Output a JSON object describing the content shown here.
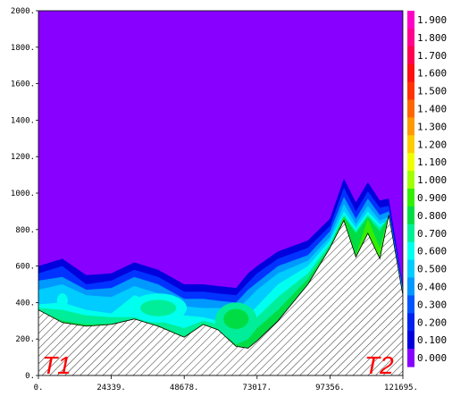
{
  "chart_data": {
    "type": "heatmap",
    "title": "",
    "xlabel": "",
    "ylabel": "",
    "xlim": [
      0,
      121695
    ],
    "ylim": [
      0,
      2000
    ],
    "x_ticks": [
      "0.",
      "24339.",
      "48678.",
      "73017.",
      "97356.",
      "121695."
    ],
    "x_tick_values": [
      0,
      24339,
      48678,
      73017,
      97356,
      121695
    ],
    "y_ticks": [
      "0.",
      "200.",
      "400.",
      "600.",
      "800.",
      "1000.",
      "1200.",
      "1400.",
      "1600.",
      "1800.",
      "2000."
    ],
    "y_tick_values": [
      0,
      200,
      400,
      600,
      800,
      1000,
      1200,
      1400,
      1600,
      1800,
      2000
    ],
    "colorbar": {
      "labels": [
        "1.900",
        "1.800",
        "1.700",
        "1.600",
        "1.500",
        "1.400",
        "1.300",
        "1.200",
        "1.100",
        "1.000",
        "0.900",
        "0.800",
        "0.700",
        "0.600",
        "0.500",
        "0.400",
        "0.300",
        "0.200",
        "0.100",
        "0.000"
      ],
      "colors": [
        "#ff00c8",
        "#ff0090",
        "#ff0050",
        "#ff1010",
        "#ff3300",
        "#ff6600",
        "#ff9900",
        "#ffcc00",
        "#eeff00",
        "#a0ff00",
        "#33ee00",
        "#00dd44",
        "#00ee99",
        "#00ffee",
        "#00ccff",
        "#0099ff",
        "#0055ff",
        "#0022ee",
        "#0000dd",
        "#8800ff"
      ]
    },
    "background_color": "#8800ff",
    "start_label": "T1",
    "end_label": "T2",
    "terrain": {
      "x": [
        0,
        8000,
        16000,
        24339,
        32000,
        40000,
        48678,
        55000,
        60000,
        66000,
        70000,
        73017,
        80000,
        90000,
        97356,
        102000,
        106000,
        110000,
        114000,
        117000,
        121695
      ],
      "y": [
        360,
        290,
        270,
        280,
        310,
        270,
        210,
        280,
        250,
        160,
        150,
        190,
        300,
        500,
        700,
        850,
        650,
        780,
        640,
        880,
        440
      ]
    },
    "layers": [
      {
        "value": 0.0,
        "color": "#8800ff",
        "y": [
          650,
          690,
          590,
          600,
          660,
          610,
          530,
          530,
          520,
          520,
          600,
          640,
          720,
          780,
          900,
          1130,
          1000,
          1110,
          1010,
          1020,
          500
        ]
      },
      {
        "value": 0.1,
        "color": "#0000dd",
        "y": [
          600,
          640,
          550,
          560,
          620,
          580,
          500,
          500,
          490,
          480,
          560,
          600,
          680,
          740,
          860,
          1080,
          950,
          1060,
          960,
          970,
          490
        ]
      },
      {
        "value": 0.2,
        "color": "#0033ff",
        "y": [
          560,
          600,
          500,
          520,
          580,
          540,
          460,
          460,
          450,
          440,
          510,
          560,
          640,
          700,
          820,
          1030,
          900,
          1010,
          920,
          930,
          480
        ]
      },
      {
        "value": 0.3,
        "color": "#0099ff",
        "y": [
          520,
          540,
          470,
          480,
          540,
          500,
          420,
          420,
          410,
          400,
          470,
          510,
          600,
          660,
          790,
          980,
          860,
          970,
          880,
          900,
          470
        ]
      },
      {
        "value": 0.4,
        "color": "#00ccff",
        "y": [
          470,
          500,
          440,
          430,
          490,
          450,
          380,
          370,
          370,
          360,
          420,
          470,
          560,
          630,
          760,
          940,
          830,
          930,
          850,
          870,
          460
        ]
      },
      {
        "value": 0.5,
        "color": "#00ffee",
        "y": [
          390,
          400,
          360,
          340,
          440,
          400,
          330,
          320,
          300,
          260,
          330,
          380,
          500,
          600,
          740,
          900,
          810,
          900,
          830,
          850,
          450
        ]
      },
      {
        "value": 0.6,
        "color": "#00ee99",
        "y": [
          370,
          360,
          330,
          320,
          320,
          300,
          260,
          300,
          280,
          200,
          260,
          320,
          430,
          560,
          720,
          880,
          790,
          880,
          810,
          860,
          450
        ]
      },
      {
        "value": 0.7,
        "color": "#00dd44",
        "y": [
          360,
          300,
          280,
          285,
          310,
          275,
          215,
          285,
          255,
          170,
          200,
          260,
          360,
          530,
          710,
          870,
          780,
          870,
          790,
          870,
          445
        ]
      },
      {
        "value": 0.9,
        "color": "#33ee00",
        "y": [
          360,
          290,
          270,
          280,
          310,
          270,
          210,
          280,
          250,
          160,
          150,
          190,
          300,
          500,
          700,
          865,
          660,
          860,
          700,
          875,
          443
        ]
      },
      {
        "value": 1.2,
        "color": "#ffcc00",
        "y": [
          360,
          290,
          270,
          280,
          310,
          270,
          210,
          280,
          250,
          160,
          150,
          190,
          300,
          500,
          700,
          850,
          650,
          780,
          640,
          886,
          442
        ]
      },
      {
        "value": 1.5,
        "color": "#ff3300",
        "y": [
          360,
          290,
          270,
          280,
          310,
          270,
          210,
          280,
          250,
          160,
          150,
          190,
          300,
          500,
          700,
          850,
          650,
          780,
          640,
          882,
          441
        ]
      }
    ],
    "blobs": [
      {
        "cx": 8000,
        "cy": 410,
        "rx": 1800,
        "ry": 40,
        "color": "#00ffee"
      },
      {
        "cx": 40000,
        "cy": 370,
        "rx": 9500,
        "ry": 80,
        "color": "#00ffee"
      },
      {
        "cx": 40000,
        "cy": 370,
        "rx": 6000,
        "ry": 45,
        "color": "#00ee99"
      },
      {
        "cx": 66000,
        "cy": 300,
        "rx": 7000,
        "ry": 100,
        "color": "#00ee99"
      },
      {
        "cx": 66000,
        "cy": 310,
        "rx": 4200,
        "ry": 55,
        "color": "#00dd44"
      }
    ]
  }
}
